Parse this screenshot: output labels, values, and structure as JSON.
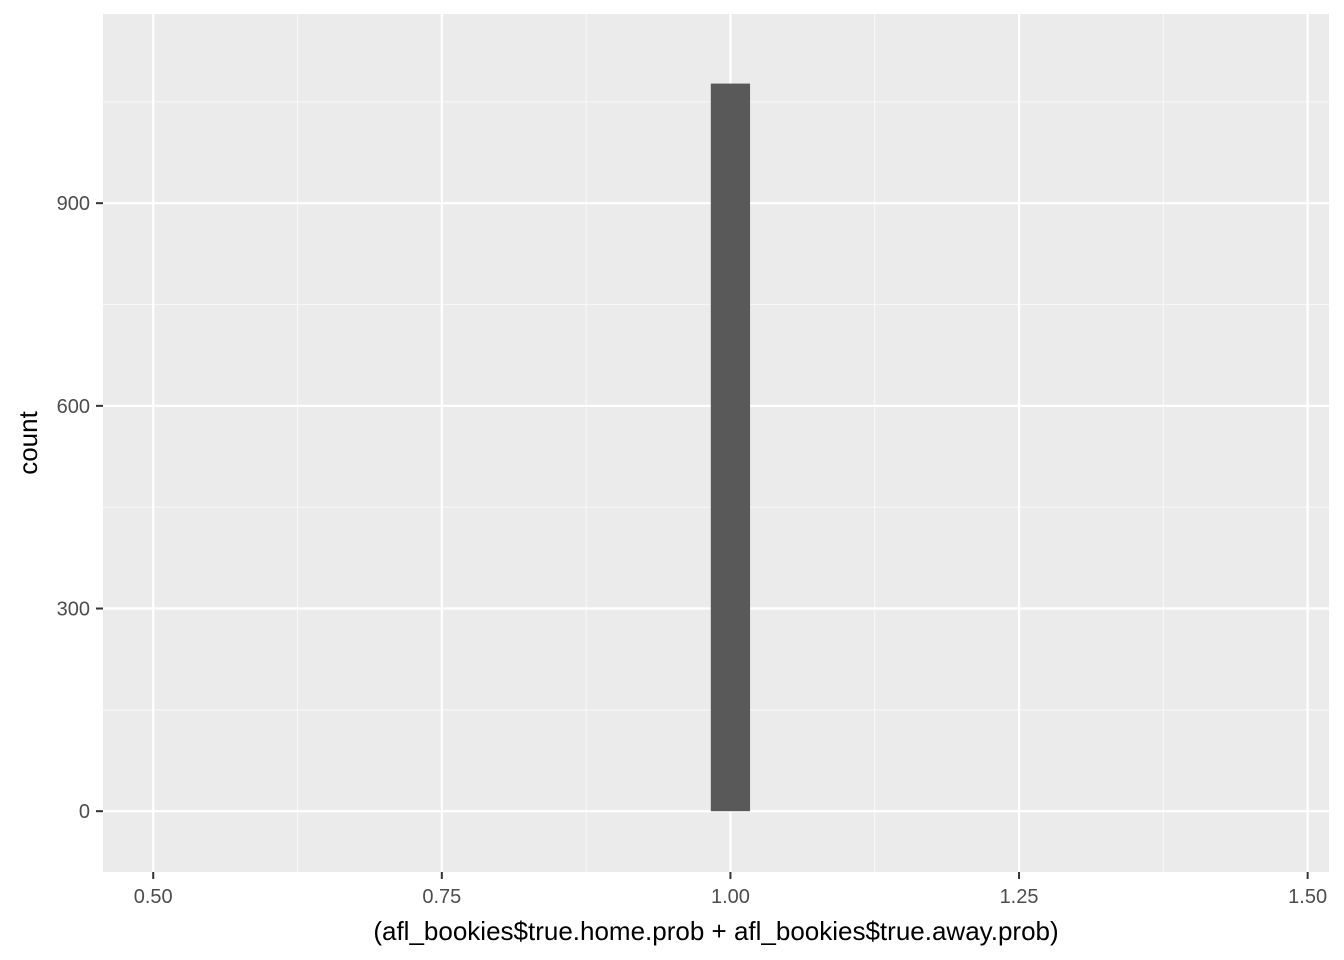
{
  "chart_data": {
    "type": "bar",
    "subtype": "histogram",
    "title": "",
    "xlabel": "(afl_bookies$true.home.prob + afl_bookies$true.away.prob)",
    "ylabel": "count",
    "xlim": [
      0.4565,
      1.5185
    ],
    "ylim": [
      -90,
      1180
    ],
    "x_major_ticks": [
      0.5,
      0.75,
      1.0,
      1.25,
      1.5
    ],
    "x_tick_labels": [
      "0.50",
      "0.75",
      "1.00",
      "1.25",
      "1.50"
    ],
    "x_minor_ticks": [
      0.625,
      0.875,
      1.125,
      1.375
    ],
    "y_major_ticks": [
      0,
      300,
      600,
      900
    ],
    "y_tick_labels": [
      "0",
      "300",
      "600",
      "900"
    ],
    "y_minor_ticks": [
      150,
      450,
      750,
      1050
    ],
    "bins": [
      {
        "x_start": 0.983,
        "x_end": 1.017,
        "count": 1077
      }
    ],
    "grid": true,
    "legend": "none",
    "colors": {
      "panel_background": "#ebebeb",
      "grid_major": "#ffffff",
      "grid_minor": "#f7f7f7",
      "bar_fill": "#595959",
      "tick_text": "#4d4d4d",
      "tick_mark": "#333333"
    }
  }
}
